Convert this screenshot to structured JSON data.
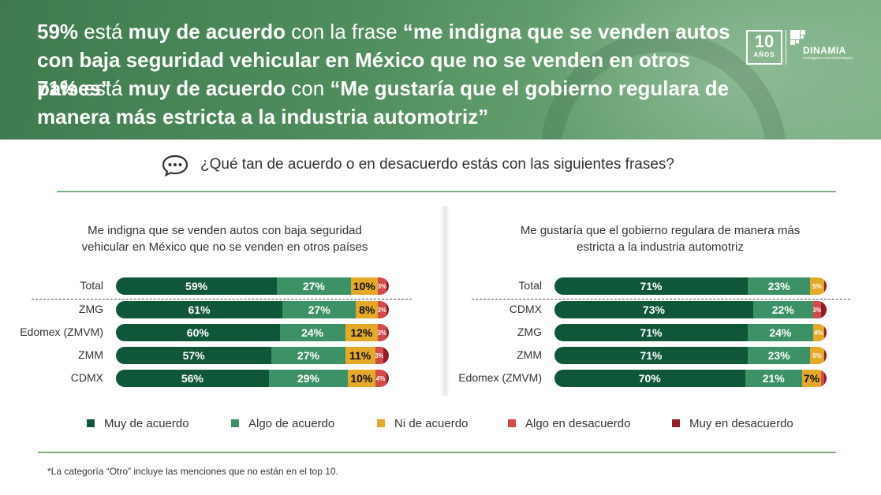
{
  "header": {
    "line1": {
      "pct": "59%",
      "t1": " está ",
      "emph": "muy de acuerdo",
      "t2": " con la frase ",
      "quote": "“me indigna que se venden autos con baja seguridad vehicular en México que no se venden en otros países”",
      "end": "."
    },
    "line2": {
      "pct": "71%",
      "t1": " está ",
      "emph": "muy de acuerdo",
      "t2": " con ",
      "quote": "“Me gustaría que el gobierno regulara de manera más estricta a la industria automotriz”"
    },
    "logo": {
      "number": "10",
      "years": "AÑOS",
      "brand": "DINAMIA",
      "tagline": "Investigación Social Estratégica"
    }
  },
  "question": "¿Qué tan de acuerdo o en desacuerdo estás con las siguientes frases?",
  "legend": [
    {
      "label": "Muy de acuerdo",
      "color": "#10573a"
    },
    {
      "label": "Algo de acuerdo",
      "color": "#3c9166"
    },
    {
      "label": "Ni de acuerdo",
      "color": "#e5a92a"
    },
    {
      "label": "Algo en desacuerdo",
      "color": "#d24b4b"
    },
    {
      "label": "Muy en desacuerdo",
      "color": "#8f1d26"
    }
  ],
  "footnote": "*La categoría “Otro” incluye las menciones que no están en el top 10.",
  "chart_data": [
    {
      "type": "bar",
      "orientation": "horizontal",
      "stacked": true,
      "title": "Me indigna que se venden autos con baja seguridad vehicular en México que no se venden en otros países",
      "categories": [
        "Total",
        "ZMG",
        "Edomex (ZMVM)",
        "ZMM",
        "CDMX"
      ],
      "series": [
        {
          "name": "Muy de acuerdo",
          "values": [
            59,
            61,
            60,
            57,
            56
          ],
          "labels": [
            "59%",
            "61%",
            "60%",
            "57%",
            "56%"
          ]
        },
        {
          "name": "Algo de acuerdo",
          "values": [
            27,
            27,
            24,
            27,
            29
          ],
          "labels": [
            "27%",
            "27%",
            "24%",
            "27%",
            "29%"
          ]
        },
        {
          "name": "Ni de acuerdo",
          "values": [
            10,
            8,
            12,
            11,
            10
          ],
          "labels": [
            "10%",
            "8%",
            "12%",
            "11%",
            "10%"
          ]
        },
        {
          "name": "Algo en desacuerdo",
          "values": [
            3,
            3,
            3,
            3,
            4
          ],
          "labels": [
            "3%",
            "3%",
            "3%",
            "3%",
            "4%"
          ]
        },
        {
          "name": "Muy en desacuerdo",
          "values": [
            1,
            1,
            1,
            2,
            1
          ],
          "labels": [
            "",
            "",
            "",
            "",
            ""
          ]
        }
      ],
      "xlim": [
        0,
        100
      ]
    },
    {
      "type": "bar",
      "orientation": "horizontal",
      "stacked": true,
      "title": "Me gustaría que el gobierno regulara de manera más estricta a la industria automotriz",
      "categories": [
        "Total",
        "CDMX",
        "ZMG",
        "ZMM",
        "Edomex (ZMVM)"
      ],
      "series": [
        {
          "name": "Muy de acuerdo",
          "values": [
            71,
            73,
            71,
            71,
            70
          ],
          "labels": [
            "71%",
            "73%",
            "71%",
            "71%",
            "70%"
          ]
        },
        {
          "name": "Algo de acuerdo",
          "values": [
            23,
            22,
            24,
            23,
            21
          ],
          "labels": [
            "23%",
            "22%",
            "24%",
            "23%",
            "21%"
          ]
        },
        {
          "name": "Ni de acuerdo",
          "values": [
            5,
            0,
            4,
            5,
            7
          ],
          "labels": [
            "5%",
            "",
            "4%",
            "5%",
            "7%"
          ]
        },
        {
          "name": "Algo en desacuerdo",
          "values": [
            0,
            3,
            0,
            0,
            1
          ],
          "labels": [
            "",
            "3%",
            "",
            "",
            ""
          ]
        },
        {
          "name": "Muy en desacuerdo",
          "values": [
            1,
            2,
            1,
            1,
            1
          ],
          "labels": [
            "",
            "",
            "",
            "",
            ""
          ]
        }
      ],
      "xlim": [
        0,
        100
      ]
    }
  ]
}
